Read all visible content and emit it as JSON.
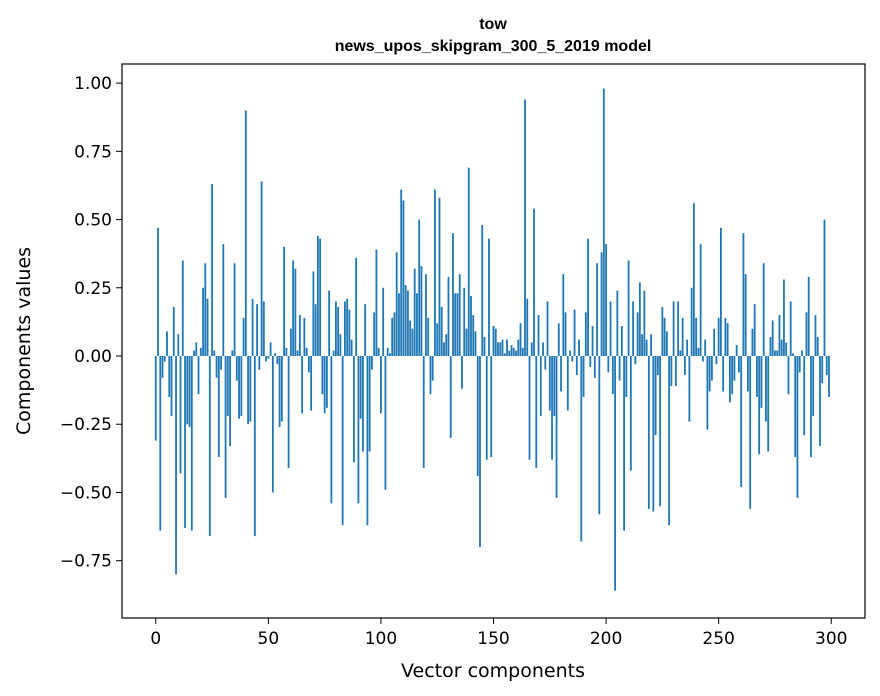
{
  "chart_data": {
    "type": "bar",
    "title": "tow",
    "subtitle": "news_upos_skipgram_300_5_2019 model",
    "xlabel": "Vector components",
    "ylabel": "Components values",
    "xlim": [
      -15,
      315
    ],
    "ylim": [
      -0.96,
      1.07
    ],
    "xticks": [
      0,
      50,
      100,
      150,
      200,
      250,
      300
    ],
    "yticks": [
      1.0,
      0.75,
      0.5,
      0.25,
      0.0,
      -0.25,
      -0.5,
      -0.75
    ],
    "ytick_labels": [
      "1.00",
      "0.75",
      "0.50",
      "0.25",
      "0.00",
      "−0.25",
      "−0.50",
      "−0.75"
    ],
    "bar_color": "#1f77b4",
    "grid": false,
    "x": "0..299",
    "values": [
      -0.31,
      0.47,
      -0.64,
      -0.08,
      -0.02,
      0.09,
      -0.15,
      -0.22,
      0.18,
      -0.8,
      0.08,
      -0.43,
      0.35,
      -0.63,
      -0.25,
      -0.26,
      -0.64,
      0.02,
      0.05,
      -0.14,
      0.03,
      0.25,
      0.34,
      0.21,
      -0.66,
      0.63,
      0.02,
      -0.08,
      -0.37,
      -0.05,
      0.41,
      -0.52,
      -0.22,
      -0.33,
      0.02,
      0.34,
      -0.09,
      -0.23,
      -0.22,
      0.14,
      0.9,
      -0.25,
      -0.24,
      0.21,
      -0.66,
      0.19,
      -0.05,
      0.64,
      0.2,
      -0.02,
      -0.01,
      0.05,
      -0.5,
      0.01,
      -0.03,
      -0.26,
      -0.24,
      0.4,
      0.03,
      -0.41,
      0.1,
      0.35,
      0.32,
      0.02,
      0.15,
      -0.21,
      0.14,
      0.03,
      -0.06,
      -0.2,
      0.31,
      0.19,
      0.44,
      0.43,
      -0.14,
      -0.21,
      -0.19,
      0.24,
      -0.54,
      0.02,
      0.2,
      0.18,
      0.08,
      -0.62,
      0.2,
      0.21,
      0.17,
      0.06,
      -0.39,
      0.36,
      -0.54,
      -0.23,
      -0.35,
      0.19,
      -0.62,
      -0.35,
      -0.05,
      0.16,
      0.39,
      0.03,
      -0.21,
      0.25,
      -0.49,
      0.03,
      0.01,
      0.14,
      0.16,
      0.38,
      0.23,
      0.61,
      0.57,
      0.26,
      0.24,
      0.13,
      0.1,
      0.32,
      0.23,
      0.5,
      0.33,
      -0.41,
      0.3,
      0.14,
      -0.14,
      -0.09,
      0.61,
      0.12,
      0.58,
      0.18,
      0.05,
      0.08,
      0.29,
      -0.3,
      0.45,
      0.23,
      0.23,
      0.3,
      -0.12,
      0.25,
      0.1,
      0.69,
      0.22,
      0.15,
      0.09,
      -0.44,
      -0.7,
      0.48,
      0.07,
      -0.38,
      0.43,
      -0.37,
      0.11,
      0.1,
      0.05,
      0.05,
      0.06,
      0.01,
      0.06,
      0.02,
      0.04,
      0.03,
      0.02,
      0.06,
      0.12,
      0.03,
      0.94,
      0.21,
      -0.38,
      0.05,
      0.54,
      -0.41,
      0.15,
      -0.22,
      0.05,
      -0.05,
      0.2,
      -0.2,
      -0.38,
      -0.22,
      -0.52,
      0.12,
      -0.13,
      0.3,
      0.16,
      -0.2,
      0.02,
      -0.02,
      0.17,
      -0.07,
      0.06,
      -0.68,
      -0.15,
      0.16,
      0.43,
      -0.04,
      0.11,
      -0.08,
      0.34,
      -0.58,
      0.38,
      0.98,
      0.41,
      -0.06,
      0.2,
      -0.14,
      -0.86,
      0.24,
      -0.09,
      0.11,
      -0.64,
      -0.15,
      0.35,
      -0.42,
      0.2,
      -0.03,
      0.16,
      0.27,
      0.08,
      0.24,
      0.06,
      -0.56,
      0.08,
      -0.57,
      -0.29,
      -0.07,
      -0.55,
      0.18,
      0.14,
      0.09,
      -0.62,
      -0.11,
      0.2,
      -0.11,
      0.2,
      0.02,
      0.14,
      -0.07,
      0.06,
      -0.24,
      0.25,
      0.56,
      0.14,
      0.03,
      0.41,
      -0.02,
      0.06,
      -0.27,
      -0.13,
      -0.09,
      0.1,
      -0.03,
      0.14,
      0.47,
      -0.13,
      0.14,
      0.12,
      -0.17,
      -0.14,
      -0.09,
      0.04,
      -0.06,
      -0.48,
      0.45,
      0.3,
      -0.13,
      -0.56,
      0.1,
      0.19,
      -0.15,
      -0.36,
      -0.19,
      0.34,
      -0.24,
      -0.35,
      0.07,
      0.13,
      0.02,
      0.02,
      0.15,
      0.06,
      0.28,
      0.05,
      -0.14,
      0.2,
      0.01,
      -0.37,
      -0.52,
      -0.06,
      0.02,
      -0.29,
      0.16,
      0.29,
      -0.37,
      -0.22,
      0.15,
      0.07,
      -0.33,
      -0.1,
      0.5,
      -0.07,
      -0.15
    ]
  }
}
